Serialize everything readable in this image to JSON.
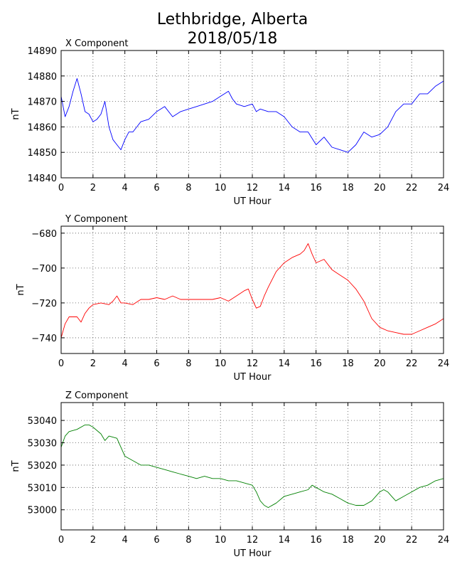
{
  "figure": {
    "title_line1": "Lethbridge, Alberta",
    "title_line2": "2018/05/18"
  },
  "chart_data": [
    {
      "type": "line",
      "title": "X Component",
      "xlabel": "UT Hour",
      "ylabel": "nT",
      "xlim": [
        0,
        24
      ],
      "ylim": [
        14840,
        14890
      ],
      "xticks": [
        0,
        2,
        4,
        6,
        8,
        10,
        12,
        14,
        16,
        18,
        20,
        22,
        24
      ],
      "yticks": [
        14840,
        14850,
        14860,
        14870,
        14880,
        14890
      ],
      "xtick_labels": [
        "0",
        "2",
        "4",
        "6",
        "8",
        "10",
        "12",
        "14",
        "16",
        "18",
        "20",
        "22",
        "24"
      ],
      "ytick_labels": [
        "14840",
        "14850",
        "14860",
        "14870",
        "14880",
        "14890"
      ],
      "grid": true,
      "color": "#0000ff",
      "series": [
        {
          "x": [
            0,
            0.25,
            0.5,
            0.75,
            1.0,
            1.25,
            1.5,
            1.75,
            2.0,
            2.25,
            2.5,
            2.75,
            3.0,
            3.25,
            3.5,
            3.75,
            4.0,
            4.25,
            4.5,
            4.75,
            5.0,
            5.5,
            6.0,
            6.5,
            7.0,
            7.5,
            8.0,
            8.5,
            9.0,
            9.5,
            10.0,
            10.25,
            10.5,
            10.75,
            11.0,
            11.5,
            12.0,
            12.25,
            12.5,
            13.0,
            13.5,
            14.0,
            14.5,
            15.0,
            15.5,
            16.0,
            16.5,
            17.0,
            17.5,
            18.0,
            18.5,
            19.0,
            19.5,
            20.0,
            20.5,
            21.0,
            21.5,
            22.0,
            22.5,
            23.0,
            23.5,
            24.0
          ],
          "y": [
            14872,
            14864,
            14868,
            14874,
            14879,
            14873,
            14866,
            14865,
            14862,
            14863,
            14865,
            14870,
            14860,
            14855,
            14853,
            14851,
            14855,
            14858,
            14858,
            14860,
            14862,
            14863,
            14866,
            14868,
            14864,
            14866,
            14867,
            14868,
            14869,
            14870,
            14872,
            14873,
            14874,
            14871,
            14869,
            14868,
            14869,
            14866,
            14867,
            14866,
            14866,
            14864,
            14860,
            14858,
            14858,
            14853,
            14856,
            14852,
            14851,
            14850,
            14853,
            14858,
            14856,
            14857,
            14860,
            14866,
            14869,
            14869,
            14873,
            14873,
            14876,
            14878
          ]
        }
      ]
    },
    {
      "type": "line",
      "title": "Y Component",
      "xlabel": "UT Hour",
      "ylabel": "nT",
      "xlim": [
        0,
        24
      ],
      "ylim": [
        -749,
        -676
      ],
      "xticks": [
        0,
        2,
        4,
        6,
        8,
        10,
        12,
        14,
        16,
        18,
        20,
        22,
        24
      ],
      "yticks": [
        -740,
        -720,
        -700,
        -680
      ],
      "xtick_labels": [
        "0",
        "2",
        "4",
        "6",
        "8",
        "10",
        "12",
        "14",
        "16",
        "18",
        "20",
        "22",
        "24"
      ],
      "ytick_labels": [
        "−740",
        "−720",
        "−700",
        "−680"
      ],
      "grid": true,
      "color": "#ff0000",
      "series": [
        {
          "x": [
            0,
            0.25,
            0.5,
            0.75,
            1.0,
            1.25,
            1.5,
            1.75,
            2.0,
            2.5,
            3.0,
            3.25,
            3.5,
            3.75,
            4.0,
            4.5,
            5.0,
            5.5,
            6.0,
            6.5,
            7.0,
            7.5,
            8.0,
            8.5,
            9.0,
            9.5,
            10.0,
            10.5,
            11.0,
            11.5,
            11.75,
            12.0,
            12.25,
            12.5,
            12.75,
            13.0,
            13.5,
            14.0,
            14.5,
            15.0,
            15.25,
            15.5,
            15.75,
            16.0,
            16.5,
            17.0,
            17.5,
            18.0,
            18.5,
            19.0,
            19.5,
            20.0,
            20.5,
            21.0,
            21.5,
            22.0,
            22.5,
            23.0,
            23.5,
            24.0
          ],
          "y": [
            -740,
            -732,
            -728,
            -728,
            -728,
            -731,
            -726,
            -723,
            -721,
            -720,
            -721,
            -719,
            -716,
            -720,
            -720,
            -721,
            -718,
            -718,
            -717,
            -718,
            -716,
            -718,
            -718,
            -718,
            -718,
            -718,
            -717,
            -719,
            -716,
            -713,
            -712,
            -718,
            -723,
            -722,
            -716,
            -711,
            -702,
            -697,
            -694,
            -692,
            -690,
            -686,
            -692,
            -697,
            -695,
            -701,
            -704,
            -707,
            -712,
            -719,
            -729,
            -734,
            -736,
            -737,
            -738,
            -738,
            -736,
            -734,
            -732,
            -729
          ]
        }
      ]
    },
    {
      "type": "line",
      "title": "Z Component",
      "xlabel": "UT Hour",
      "ylabel": "nT",
      "xlim": [
        0,
        24
      ],
      "ylim": [
        52991,
        53048
      ],
      "xticks": [
        0,
        2,
        4,
        6,
        8,
        10,
        12,
        14,
        16,
        18,
        20,
        22,
        24
      ],
      "yticks": [
        53000,
        53010,
        53020,
        53030,
        53040
      ],
      "xtick_labels": [
        "0",
        "2",
        "4",
        "6",
        "8",
        "10",
        "12",
        "14",
        "16",
        "18",
        "20",
        "22",
        "24"
      ],
      "ytick_labels": [
        "53000",
        "53010",
        "53020",
        "53030",
        "53040"
      ],
      "grid": true,
      "color": "#008000",
      "series": [
        {
          "x": [
            0,
            0.25,
            0.5,
            1.0,
            1.5,
            1.75,
            2.0,
            2.5,
            2.75,
            3.0,
            3.5,
            3.75,
            4.0,
            4.5,
            5.0,
            5.5,
            6.0,
            6.5,
            7.0,
            7.5,
            8.0,
            8.5,
            9.0,
            9.5,
            10.0,
            10.5,
            11.0,
            11.5,
            12.0,
            12.25,
            12.5,
            12.75,
            13.0,
            13.5,
            14.0,
            14.5,
            15.0,
            15.5,
            15.75,
            16.0,
            16.5,
            17.0,
            17.5,
            18.0,
            18.5,
            19.0,
            19.5,
            20.0,
            20.25,
            20.5,
            20.75,
            21.0,
            21.5,
            22.0,
            22.5,
            23.0,
            23.5,
            24.0
          ],
          "y": [
            53028,
            53033,
            53035,
            53036,
            53038,
            53038,
            53037,
            53034,
            53031,
            53033,
            53032,
            53028,
            53024,
            53022,
            53020,
            53020,
            53019,
            53018,
            53017,
            53016,
            53015,
            53014,
            53015,
            53014,
            53014,
            53013,
            53013,
            53012,
            53011,
            53008,
            53004,
            53002,
            53001,
            53003,
            53006,
            53007,
            53008,
            53009,
            53011,
            53010,
            53008,
            53007,
            53005,
            53003,
            53002,
            53002,
            53004,
            53008,
            53009,
            53008,
            53006,
            53004,
            53006,
            53008,
            53010,
            53011,
            53013,
            53014
          ]
        }
      ]
    }
  ]
}
